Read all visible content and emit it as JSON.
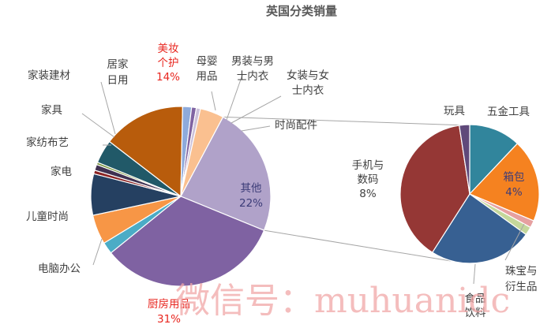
{
  "chart_data": {
    "type": "pie",
    "title": "英国分类销量",
    "main_pie": [
      {
        "name": "其他",
        "value": 22,
        "color": "#b0a2c9",
        "label_lines": [
          "其他",
          "22%"
        ]
      },
      {
        "name": "厨房用品",
        "value": 31,
        "color": "#7f62a2",
        "label_lines": [
          "厨房用品",
          "31%"
        ]
      },
      {
        "name": "电脑办公",
        "value": 2,
        "color": "#4bacc6",
        "label_lines": [
          "电脑办公"
        ]
      },
      {
        "name": "儿童时尚",
        "value": 5,
        "color": "#f79646",
        "label_lines": [
          "儿童时尚"
        ]
      },
      {
        "name": "家电",
        "value": 7,
        "color": "#254061",
        "label_lines": [
          "家电"
        ]
      },
      {
        "name": "家纺布艺",
        "value": 0.6,
        "color": "#8b2323",
        "label_lines": [
          "家纺布艺"
        ]
      },
      {
        "name": "家具",
        "value": 1,
        "color": "#403151",
        "label_lines": [
          "家具"
        ]
      },
      {
        "name": "家装建材",
        "value": 0.4,
        "color": "#76933c",
        "label_lines": [
          "家装建材"
        ]
      },
      {
        "name": "居家日用",
        "value": 4,
        "color": "#215968",
        "label_lines": [
          "居家",
          "日用"
        ]
      },
      {
        "name": "美妆个护",
        "value": 14,
        "color": "#b85c0c",
        "label_lines": [
          "美妆",
          "个护",
          "14%"
        ]
      },
      {
        "name": "母婴用品",
        "value": 1.5,
        "color": "#8eaadb",
        "label_lines": [
          "母婴",
          "用品"
        ]
      },
      {
        "name": "男装与男士内衣",
        "value": 0.8,
        "color": "#8064a2",
        "label_lines": [
          "男装与男",
          "士内衣"
        ]
      },
      {
        "name": "女装与女士内衣",
        "value": 0.7,
        "color": "#ccc1da",
        "label_lines": [
          "女装与女",
          "士内衣"
        ]
      },
      {
        "name": "时尚配件",
        "value": 4,
        "color": "#fac090",
        "label_lines": [
          "时尚配件"
        ]
      }
    ],
    "secondary_pie": [
      {
        "name": "五金工具",
        "value": 2.5,
        "color": "#31859c",
        "label_lines": [
          "五金工具"
        ]
      },
      {
        "name": "箱包",
        "value": 4,
        "color": "#f58220",
        "label_lines": [
          "箱包",
          "4%"
        ]
      },
      {
        "name": "",
        "value": 0.35,
        "color": "#e6a0a0",
        "label_lines": []
      },
      {
        "name": "珠宝与衍生品",
        "value": 0.4,
        "color": "#c4d79b",
        "label_lines": [
          "珠宝与",
          "衍生品"
        ]
      },
      {
        "name": "食品饮料",
        "value": 5,
        "color": "#376092",
        "label_lines": [
          "食品",
          "饮料"
        ]
      },
      {
        "name": "手机与数码",
        "value": 8,
        "color": "#953735",
        "label_lines": [
          "手机与",
          "数码",
          "8%"
        ]
      },
      {
        "name": "玩具",
        "value": 0.5,
        "color": "#5f497a",
        "label_lines": [
          "玩具"
        ]
      }
    ]
  },
  "watermark": "微信号：muhuanidc"
}
